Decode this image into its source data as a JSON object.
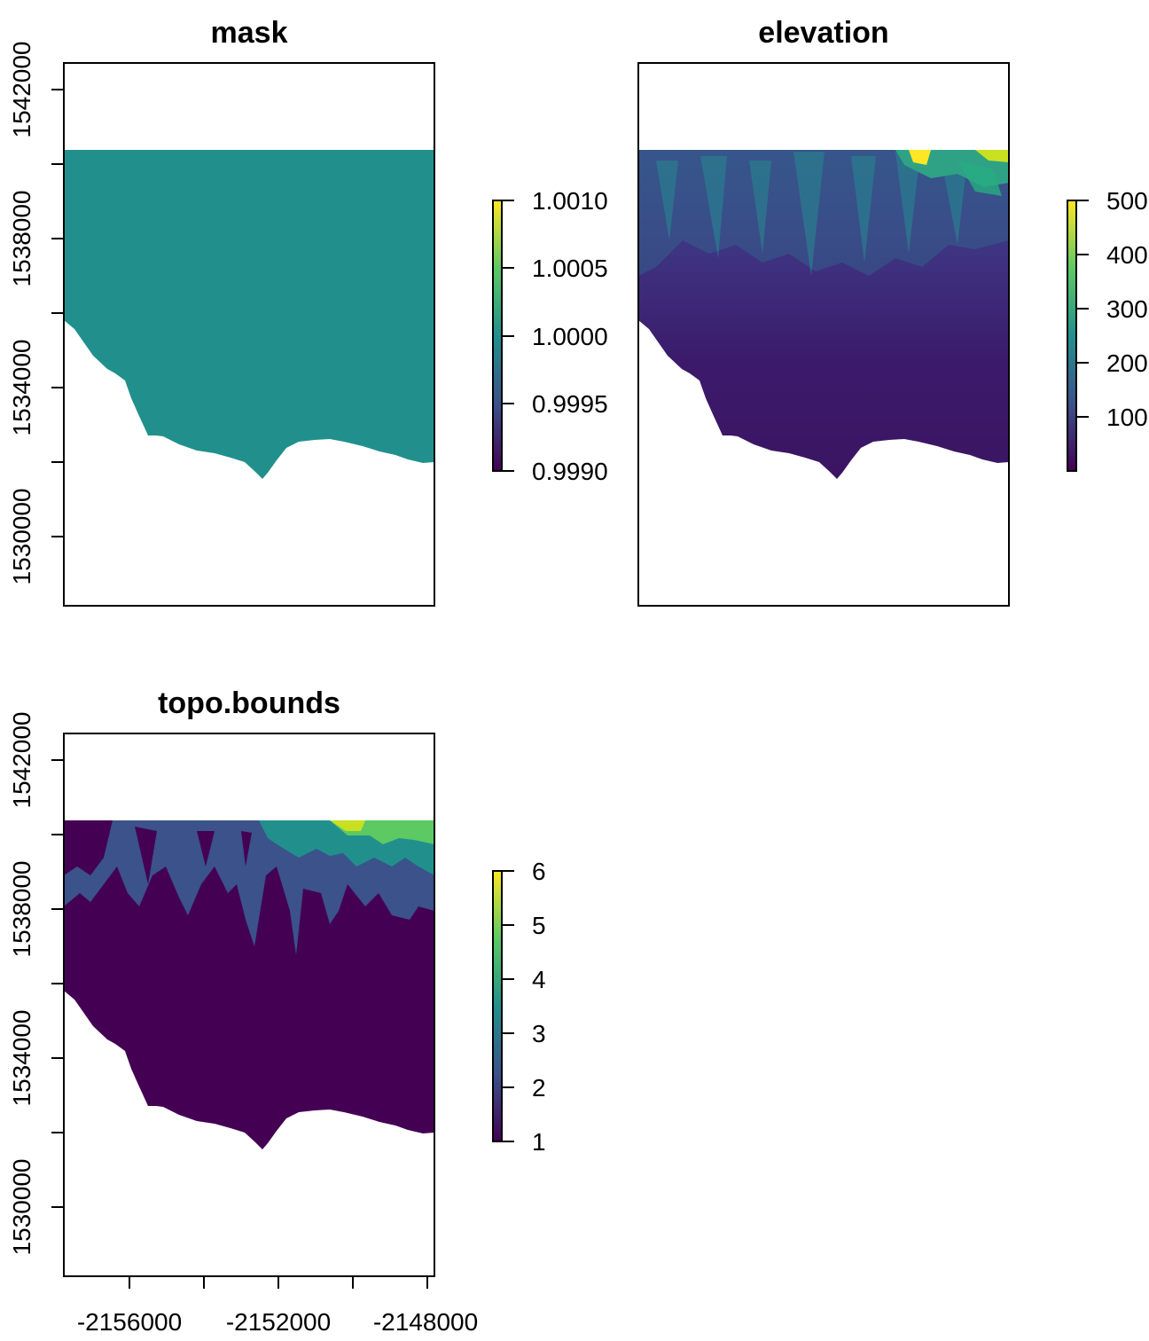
{
  "panels": [
    {
      "title": "mask",
      "y_ticks": [
        "1530000",
        "1534000",
        "1538000",
        "1542000"
      ],
      "legend_ticks": [
        "0.9990",
        "0.9995",
        "1.0000",
        "1.0005",
        "1.0010"
      ],
      "legend_range": [
        0.999,
        1.001
      ],
      "value": 1.0
    },
    {
      "title": "elevation",
      "legend_ticks": [
        "100",
        "200",
        "300",
        "400",
        "500"
      ],
      "legend_range": [
        0,
        500
      ]
    },
    {
      "title": "topo.bounds",
      "y_ticks": [
        "1530000",
        "1534000",
        "1538000",
        "1542000"
      ],
      "x_ticks": [
        "-2156000",
        "-2152000",
        "-2148000"
      ],
      "legend_ticks": [
        "1",
        "2",
        "3",
        "4",
        "5",
        "6"
      ],
      "legend_range": [
        1,
        6
      ]
    }
  ],
  "colors": {
    "palette": "viridis",
    "viridis_stops": [
      "#440154",
      "#3b528b",
      "#21908c",
      "#5dc963",
      "#fde725"
    ],
    "mask_fill": "#21908c",
    "frame": "#000000",
    "background": "#ffffff"
  }
}
